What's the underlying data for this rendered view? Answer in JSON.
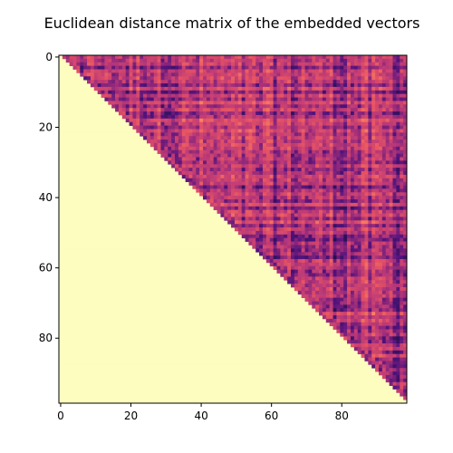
{
  "chart_data": {
    "type": "heatmap",
    "title": "Euclidean distance matrix of the embedded vectors",
    "n": 99,
    "xlim": [
      -0.5,
      98.5
    ],
    "ylim": [
      98.5,
      -0.5
    ],
    "xticks": [
      0,
      20,
      40,
      60,
      80
    ],
    "yticks": [
      0,
      20,
      40,
      60,
      80
    ],
    "masked_region": "lower-triangle-including-diagonal",
    "colormap": "magma",
    "colors": {
      "mask": "#fcfdbf",
      "low": "#1d1147",
      "mid": "#b73779",
      "high": "#fc8961"
    },
    "grid": false,
    "legend": "none"
  }
}
